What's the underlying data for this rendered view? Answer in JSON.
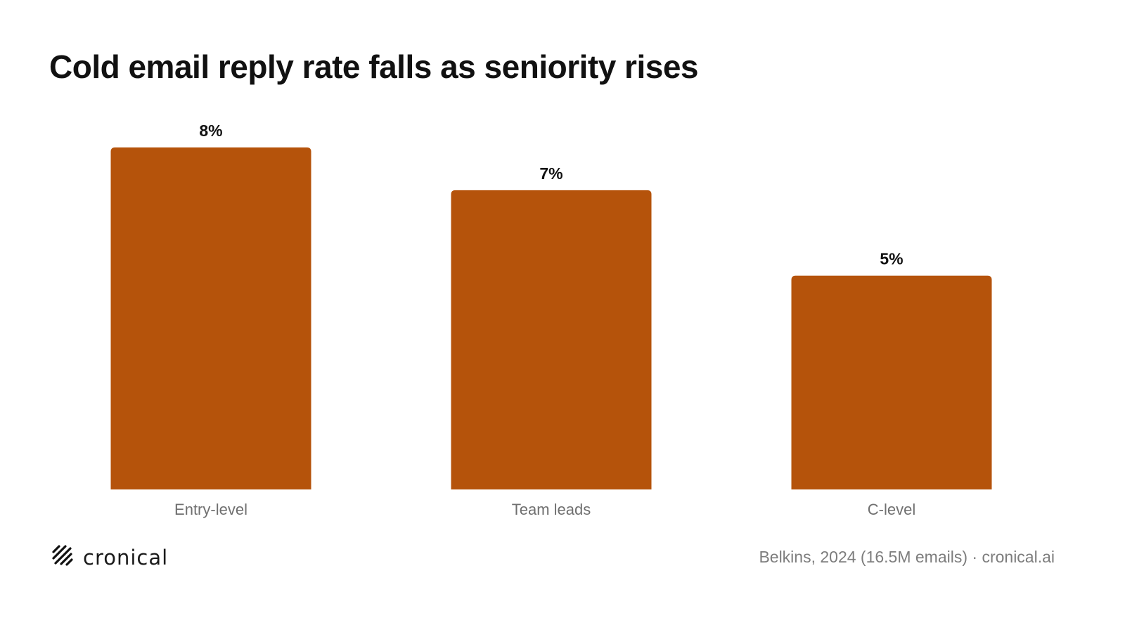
{
  "title": "Cold email reply rate falls as seniority rises",
  "chart_data": {
    "type": "bar",
    "categories": [
      "Entry-level",
      "Team leads",
      "C-level"
    ],
    "values": [
      8,
      7,
      5
    ],
    "value_labels": [
      "8%",
      "7%",
      "5%"
    ],
    "ylim": [
      0,
      8
    ],
    "bar_color": "#b5530b",
    "grid": false,
    "legend": "none"
  },
  "footer": {
    "logo_text": "cronical",
    "logo_icon": "hatched-slashes-logo-icon",
    "source": "Belkins, 2024 (16.5M emails) · cronical.ai"
  }
}
